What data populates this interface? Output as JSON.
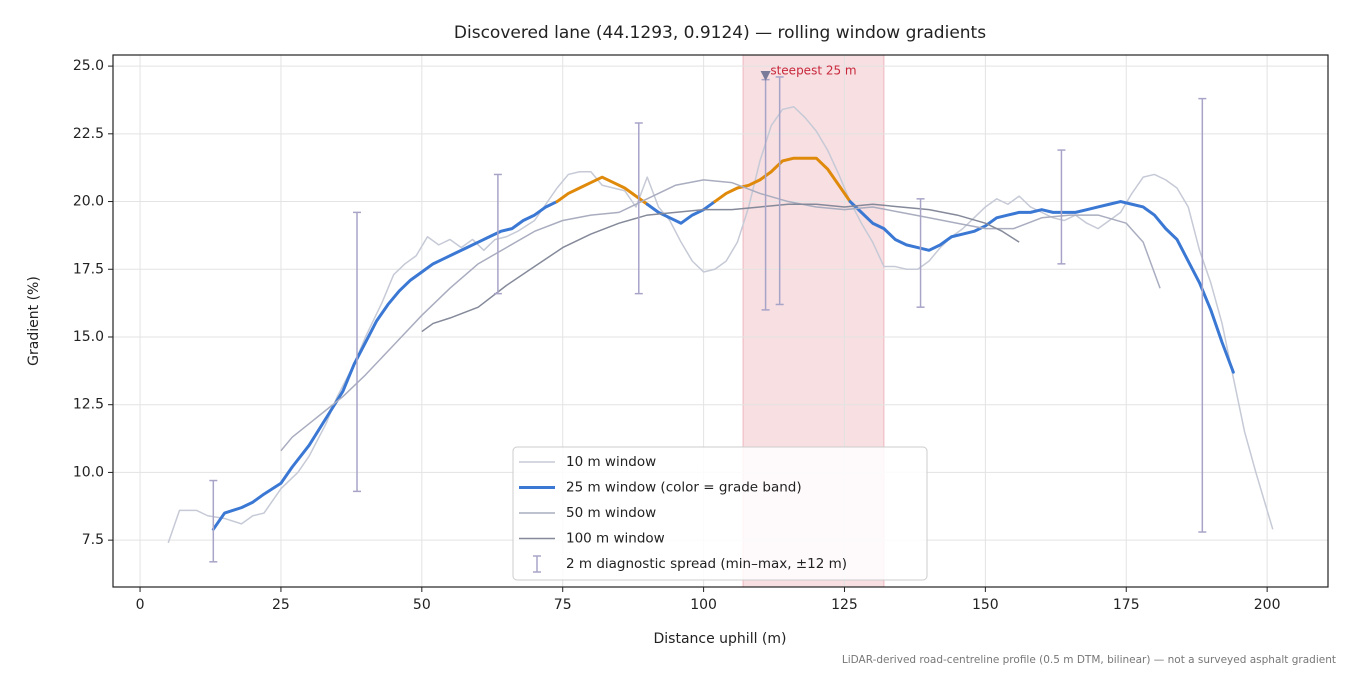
{
  "chart_data": {
    "type": "line",
    "title": "Discovered lane (44.1293, 0.9124) — rolling window gradients",
    "xlabel": "Distance uphill (m)",
    "ylabel": "Gradient (%)",
    "footnote": "LiDAR-derived road-centreline profile (0.5 m DTM, bilinear) — not a surveyed asphalt gradient",
    "xlim": [
      -4.8,
      210.8
    ],
    "ylim": [
      5.77,
      25.41
    ],
    "xticks": [
      0,
      25,
      50,
      75,
      100,
      125,
      150,
      175,
      200
    ],
    "yticks": [
      7.5,
      {
        "value": 10,
        "label": "10.0"
      },
      12.5,
      {
        "value": 15,
        "label": "15.0"
      },
      17.5,
      {
        "value": 20,
        "label": "20.0"
      },
      22.5,
      {
        "value": 25,
        "label": "25.0"
      }
    ],
    "grid": true,
    "legend": "lower center",
    "band_threshold": 20,
    "band_color": "#e08a0c",
    "series": [
      {
        "name": "10 m window",
        "color": "#c6cad6",
        "width": 1.5,
        "x": [
          5,
          7,
          10,
          12,
          15,
          18,
          20,
          22,
          25,
          28,
          30,
          33,
          35,
          38,
          40,
          43,
          45,
          47,
          49,
          51,
          53,
          55,
          57,
          59,
          61,
          63,
          65,
          67,
          70,
          72,
          74,
          76,
          78,
          80,
          82,
          84,
          86,
          88,
          90,
          92,
          94,
          96,
          98,
          100,
          102,
          104,
          106,
          108,
          110,
          112,
          114,
          116,
          118,
          120,
          122,
          124,
          126,
          128,
          130,
          132,
          134,
          136,
          138,
          140,
          142,
          144,
          146,
          148,
          150,
          152,
          154,
          156,
          158,
          160,
          162,
          164,
          166,
          168,
          170,
          172,
          174,
          176,
          178,
          180,
          182,
          184,
          186,
          188,
          190,
          192,
          194,
          196,
          198,
          201
        ],
        "values": [
          7.4,
          8.6,
          8.6,
          8.4,
          8.3,
          8.1,
          8.4,
          8.5,
          9.4,
          10.0,
          10.6,
          11.8,
          12.8,
          14.0,
          15.0,
          16.3,
          17.3,
          17.7,
          18.0,
          18.7,
          18.4,
          18.6,
          18.3,
          18.6,
          18.2,
          18.6,
          18.7,
          18.9,
          19.3,
          19.9,
          20.5,
          21.0,
          21.1,
          21.1,
          20.6,
          20.5,
          20.4,
          19.8,
          20.9,
          19.8,
          19.3,
          18.5,
          17.8,
          17.4,
          17.5,
          17.8,
          18.5,
          19.8,
          21.5,
          22.8,
          23.4,
          23.5,
          23.1,
          22.6,
          21.9,
          21.0,
          20.0,
          19.2,
          18.5,
          17.6,
          17.6,
          17.5,
          17.5,
          17.8,
          18.3,
          18.7,
          19.0,
          19.4,
          19.8,
          20.1,
          19.9,
          20.2,
          19.8,
          19.6,
          19.4,
          19.3,
          19.5,
          19.2,
          19.0,
          19.3,
          19.6,
          20.3,
          20.9,
          21.0,
          20.8,
          20.5,
          19.8,
          18.2,
          17.0,
          15.5,
          13.5,
          11.5,
          10.0,
          7.9
        ]
      },
      {
        "name": "25 m window (color = grade band)",
        "color": "#3a78d4",
        "width": 3,
        "banded": true,
        "x": [
          13,
          15,
          18,
          20,
          22,
          25,
          27,
          30,
          33,
          36,
          38,
          40,
          42,
          44,
          46,
          48,
          50,
          52,
          54,
          56,
          58,
          60,
          62,
          64,
          66,
          68,
          70,
          72,
          74,
          76,
          78,
          80,
          82,
          84,
          86,
          88,
          90,
          92,
          94,
          96,
          98,
          100,
          102,
          104,
          106,
          108,
          110,
          112,
          114,
          116,
          118,
          120,
          122,
          124,
          126,
          128,
          130,
          132,
          134,
          136,
          138,
          140,
          142,
          144,
          146,
          148,
          150,
          152,
          154,
          156,
          158,
          160,
          162,
          164,
          166,
          168,
          170,
          172,
          174,
          176,
          178,
          180,
          182,
          184,
          186,
          188,
          190,
          192,
          194
        ],
        "values": [
          7.9,
          8.5,
          8.7,
          8.9,
          9.2,
          9.6,
          10.2,
          11.0,
          12.0,
          13.0,
          14.0,
          14.8,
          15.6,
          16.2,
          16.7,
          17.1,
          17.4,
          17.7,
          17.9,
          18.1,
          18.3,
          18.5,
          18.7,
          18.9,
          19.0,
          19.3,
          19.5,
          19.8,
          20.0,
          20.3,
          20.5,
          20.7,
          20.9,
          20.7,
          20.5,
          20.2,
          19.9,
          19.6,
          19.4,
          19.2,
          19.5,
          19.7,
          20.0,
          20.3,
          20.5,
          20.6,
          20.8,
          21.1,
          21.5,
          21.6,
          21.6,
          21.6,
          21.2,
          20.6,
          20.0,
          19.6,
          19.2,
          19.0,
          18.6,
          18.4,
          18.3,
          18.2,
          18.4,
          18.7,
          18.8,
          18.9,
          19.1,
          19.4,
          19.5,
          19.6,
          19.6,
          19.7,
          19.6,
          19.6,
          19.6,
          19.7,
          19.8,
          19.9,
          20.0,
          19.9,
          19.8,
          19.5,
          19.0,
          18.6,
          17.8,
          17.0,
          16.0,
          14.8,
          13.7
        ]
      },
      {
        "name": "50 m window",
        "color": "#a9adbf",
        "width": 1.5,
        "x": [
          25,
          27,
          30,
          33,
          36,
          40,
          45,
          50,
          55,
          60,
          65,
          70,
          75,
          80,
          85,
          90,
          95,
          100,
          105,
          110,
          115,
          120,
          125,
          130,
          135,
          140,
          145,
          150,
          155,
          160,
          165,
          170,
          175,
          178,
          181
        ],
        "values": [
          10.8,
          11.3,
          11.8,
          12.3,
          12.8,
          13.6,
          14.7,
          15.8,
          16.8,
          17.7,
          18.3,
          18.9,
          19.3,
          19.5,
          19.6,
          20.1,
          20.6,
          20.8,
          20.7,
          20.3,
          20.0,
          19.8,
          19.7,
          19.8,
          19.6,
          19.4,
          19.2,
          19.0,
          19.0,
          19.4,
          19.5,
          19.5,
          19.2,
          18.5,
          16.8
        ]
      },
      {
        "name": "100 m window",
        "color": "#858a9a",
        "width": 1.5,
        "x": [
          50,
          52,
          55,
          60,
          65,
          70,
          75,
          80,
          85,
          90,
          95,
          100,
          105,
          110,
          115,
          120,
          125,
          130,
          135,
          140,
          145,
          150,
          153,
          156
        ],
        "values": [
          15.2,
          15.5,
          15.7,
          16.1,
          16.9,
          17.6,
          18.3,
          18.8,
          19.2,
          19.5,
          19.6,
          19.7,
          19.7,
          19.8,
          19.9,
          19.9,
          19.8,
          19.9,
          19.8,
          19.7,
          19.5,
          19.2,
          18.9,
          18.5
        ]
      }
    ],
    "errorbars": {
      "name": "2 m diagnostic spread (min–max, ±12 m)",
      "color": "#a8a4c8",
      "x": [
        13,
        38.5,
        63.5,
        88.5,
        111,
        113.5,
        138.5,
        163.5,
        188.5
      ],
      "min": [
        6.7,
        9.3,
        16.6,
        16.6,
        16.0,
        16.2,
        16.1,
        17.7,
        7.8
      ],
      "max": [
        9.7,
        19.6,
        21.0,
        22.9,
        24.5,
        24.6,
        20.1,
        21.9,
        23.8
      ]
    },
    "highlight": {
      "label": "steepest 25 m",
      "x": [
        107,
        132
      ],
      "marker": [
        111,
        24.6
      ],
      "color": "#e8a3ac",
      "label_color": "#c8283c"
    }
  }
}
